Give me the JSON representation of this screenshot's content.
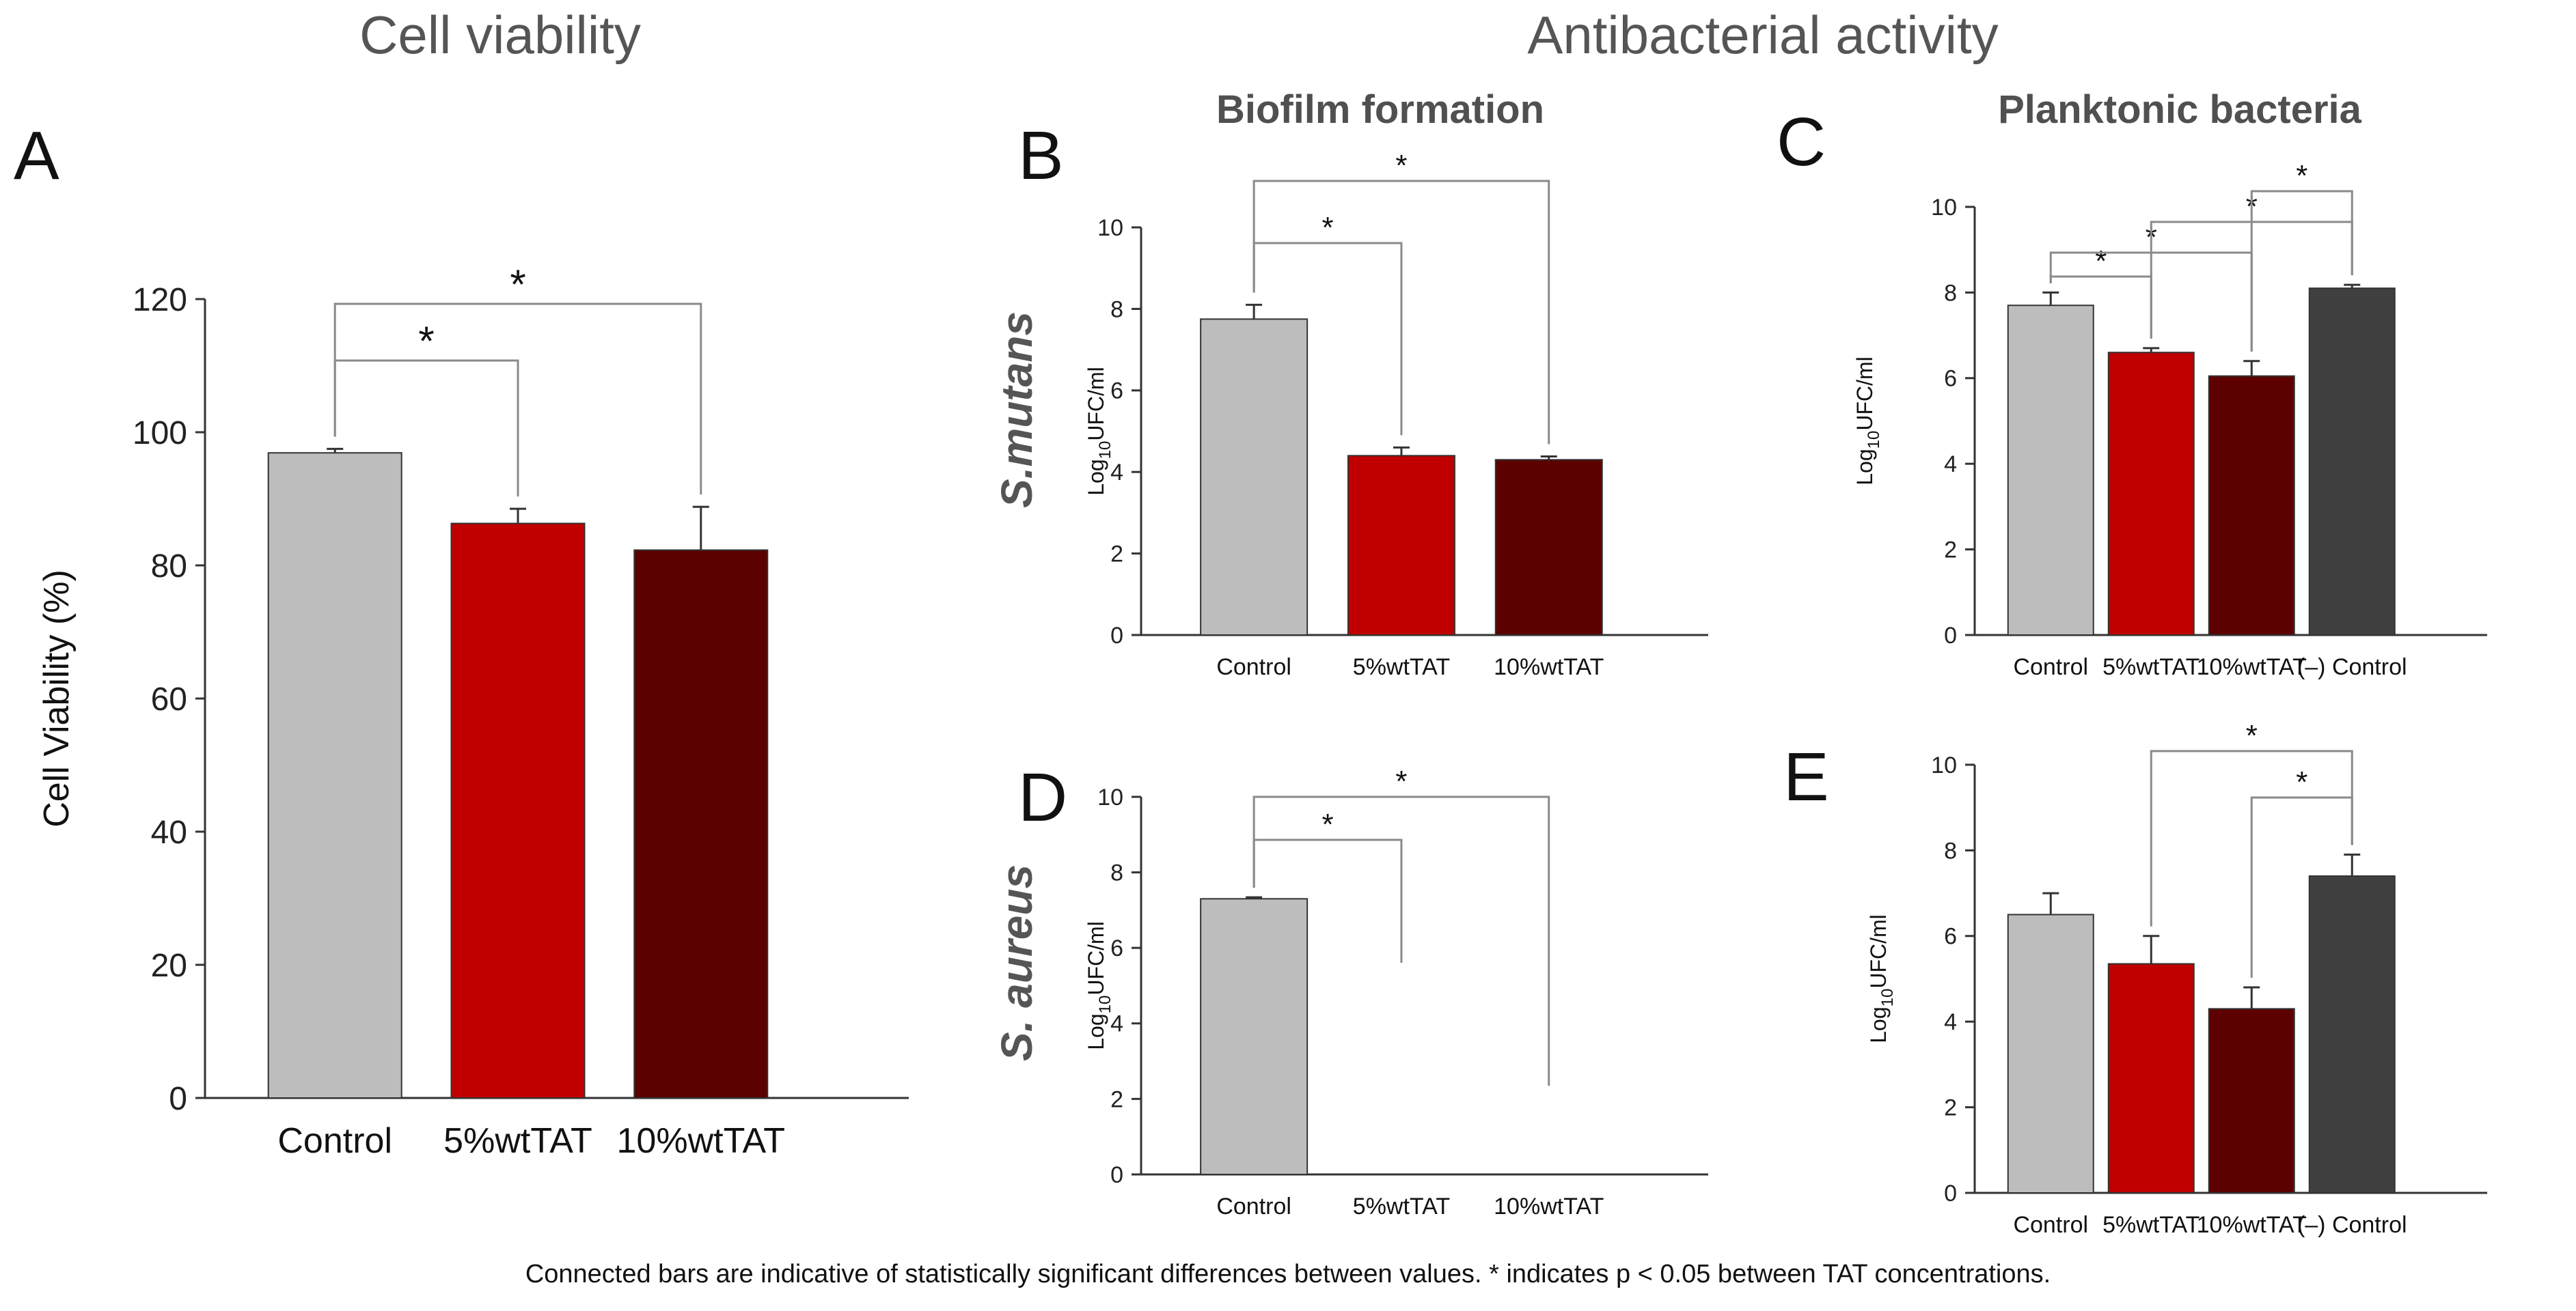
{
  "headings": {
    "cell_viability": "Cell viability",
    "antibacterial": "Antibacterial activity",
    "biofilm": "Biofilm formation",
    "planktonic": "Planktonic bacteria"
  },
  "row_labels": {
    "s_mutans": "S.mutans",
    "s_aureus": "S. aureus"
  },
  "footnote": "Connected bars are indicative of statistically significant differences between values. * indicates p < 0.05 between TAT concentrations.",
  "colors": {
    "control": "#BDBDBD",
    "tat5": "#C00000",
    "tat10": "#5C0000",
    "negative_control": "#404040",
    "axis": "#333333",
    "bracket": "#8a8a8a"
  },
  "chart_data": [
    {
      "id": "A",
      "panel_label": "A",
      "type": "bar",
      "categories": [
        "Control",
        "5%wtTAT",
        "10%wtTAT"
      ],
      "values": [
        96.9,
        86.3,
        82.3
      ],
      "errors": [
        0.6,
        2.2,
        6.5
      ],
      "colors": [
        "#BDBDBD",
        "#C00000",
        "#5C0000"
      ],
      "ylabel": "Cell Viability (%)",
      "ylim": [
        0,
        120
      ],
      "yticks": [
        "0",
        "20",
        "40",
        "60",
        "80",
        "100",
        "120"
      ],
      "significance": [
        {
          "from": 0,
          "to": 1,
          "label": "*"
        },
        {
          "from": 0,
          "to": 2,
          "label": "*"
        }
      ]
    },
    {
      "id": "B",
      "panel_label": "B",
      "type": "bar",
      "categories": [
        "Control",
        "5%wtTAT",
        "10%wtTAT"
      ],
      "values": [
        7.75,
        4.4,
        4.3
      ],
      "errors": [
        0.35,
        0.2,
        0.08
      ],
      "colors": [
        "#BDBDBD",
        "#C00000",
        "#5C0000"
      ],
      "ylabel_main": "Log",
      "ylabel_sub": "10",
      "ylabel_rest": "UFC/ml",
      "ylim": [
        0,
        10
      ],
      "yticks": [
        "0",
        "2",
        "4",
        "6",
        "8",
        "10"
      ],
      "significance": [
        {
          "from": 0,
          "to": 1,
          "label": "*"
        },
        {
          "from": 0,
          "to": 2,
          "label": "*"
        }
      ]
    },
    {
      "id": "C",
      "panel_label": "C",
      "type": "bar",
      "categories": [
        "Control",
        "5%wtTAT",
        "10%wtTAT",
        "(–) Control"
      ],
      "values": [
        7.7,
        6.6,
        6.05,
        8.1
      ],
      "errors": [
        0.3,
        0.1,
        0.35,
        0.08
      ],
      "colors": [
        "#BDBDBD",
        "#C00000",
        "#5C0000",
        "#404040"
      ],
      "ylabel_main": "Log",
      "ylabel_sub": "10",
      "ylabel_rest": "UFC/ml",
      "ylim": [
        0,
        10
      ],
      "yticks": [
        "0",
        "2",
        "4",
        "6",
        "8",
        "10"
      ],
      "significance": [
        {
          "from": 0,
          "to": 1,
          "label": "*"
        },
        {
          "from": 0,
          "to": 2,
          "label": "*"
        },
        {
          "from": 1,
          "to": 3,
          "label": "*"
        },
        {
          "from": 2,
          "to": 3,
          "label": "*"
        }
      ]
    },
    {
      "id": "D",
      "panel_label": "D",
      "type": "bar",
      "categories": [
        "Control",
        "5%wtTAT",
        "10%wtTAT"
      ],
      "values": [
        7.3,
        0,
        0
      ],
      "errors": [
        0.04,
        0,
        0
      ],
      "colors": [
        "#BDBDBD",
        "#C00000",
        "#5C0000"
      ],
      "ylabel_main": "Log",
      "ylabel_sub": "10",
      "ylabel_rest": "UFC/ml",
      "ylim": [
        0,
        10
      ],
      "yticks": [
        "0",
        "2",
        "4",
        "6",
        "8",
        "10"
      ],
      "significance": [
        {
          "from": 0,
          "to": 1,
          "label": "*"
        },
        {
          "from": 0,
          "to": 2,
          "label": "*"
        }
      ]
    },
    {
      "id": "E",
      "panel_label": "E",
      "type": "bar",
      "categories": [
        "Control",
        "5%wtTAT",
        "10%wtTAT",
        "(–) Control"
      ],
      "values": [
        6.5,
        5.35,
        4.3,
        7.4
      ],
      "errors": [
        0.5,
        0.65,
        0.5,
        0.5
      ],
      "colors": [
        "#BDBDBD",
        "#C00000",
        "#5C0000",
        "#404040"
      ],
      "ylabel_main": "Log",
      "ylabel_sub": "10",
      "ylabel_rest": "UFC/ml",
      "ylim": [
        0,
        10
      ],
      "yticks": [
        "0",
        "2",
        "4",
        "6",
        "8",
        "10"
      ],
      "significance": [
        {
          "from": 1,
          "to": 3,
          "label": "*"
        },
        {
          "from": 2,
          "to": 3,
          "label": "*"
        }
      ]
    }
  ]
}
